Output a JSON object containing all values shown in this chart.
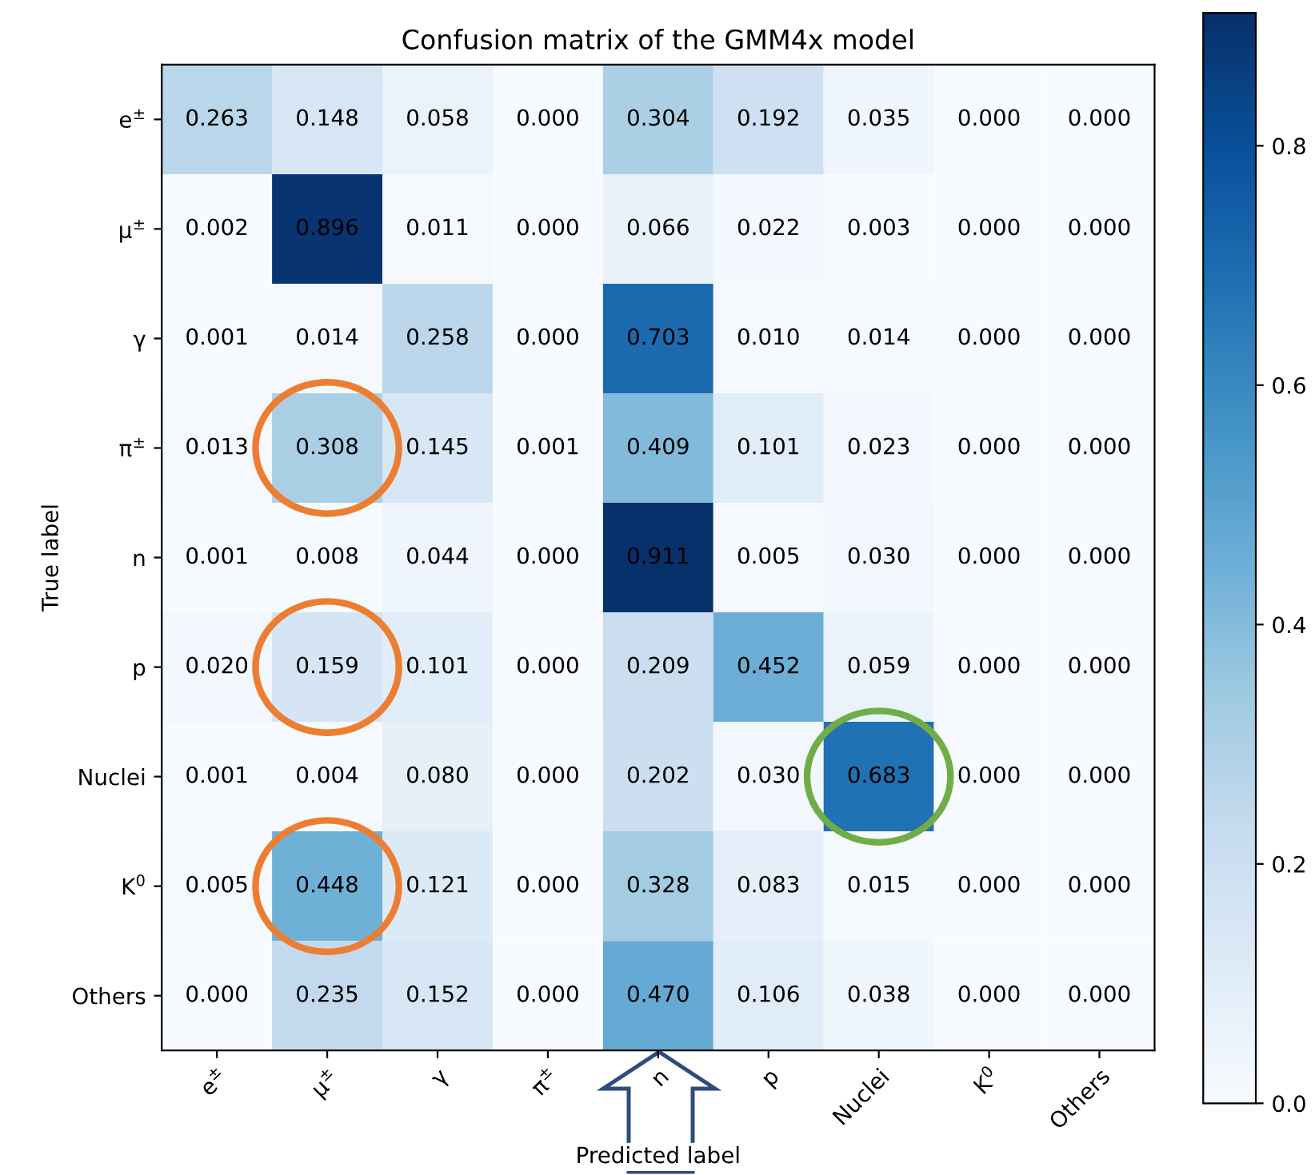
{
  "chart_data": {
    "type": "heatmap",
    "title": "Confusion matrix of the GMM4x model",
    "xlabel": "Predicted label",
    "ylabel": "True label",
    "categories": [
      "e$^{±}$",
      "μ$^{±}$",
      "γ",
      "π$^{±}$",
      "n",
      "p",
      "Nuclei",
      "K$^{0}$",
      "Others"
    ],
    "y_categories": [
      "e$^{±}$",
      "μ$^{±}$",
      "γ",
      "π$^{±}$",
      "n",
      "p",
      "Nuclei",
      "K$^{0}$",
      "Others"
    ],
    "cells": [
      [
        0.263,
        0.148,
        0.058,
        0.0,
        0.304,
        0.192,
        0.035,
        0.0,
        0.0
      ],
      [
        0.002,
        0.896,
        0.011,
        0.0,
        0.066,
        0.022,
        0.003,
        0.0,
        0.0
      ],
      [
        0.001,
        0.014,
        0.258,
        0.0,
        0.703,
        0.01,
        0.014,
        0.0,
        0.0
      ],
      [
        0.013,
        0.308,
        0.145,
        0.001,
        0.409,
        0.101,
        0.023,
        0.0,
        0.0
      ],
      [
        0.001,
        0.008,
        0.044,
        0.0,
        0.911,
        0.005,
        0.03,
        0.0,
        0.0
      ],
      [
        0.02,
        0.159,
        0.101,
        0.0,
        0.209,
        0.452,
        0.059,
        0.0,
        0.0
      ],
      [
        0.001,
        0.004,
        0.08,
        0.0,
        0.202,
        0.03,
        0.683,
        0.0,
        0.0
      ],
      [
        0.005,
        0.448,
        0.121,
        0.0,
        0.328,
        0.083,
        0.015,
        0.0,
        0.0
      ],
      [
        0.0,
        0.235,
        0.152,
        0.0,
        0.47,
        0.106,
        0.038,
        0.0,
        0.0
      ]
    ],
    "cell_labels": [
      [
        "0.263",
        "0.148",
        "0.058",
        "0.000",
        "0.304",
        "0.192",
        "0.035",
        "0.000",
        "0.000"
      ],
      [
        "0.002",
        "0.896",
        "0.011",
        "0.000",
        "0.066",
        "0.022",
        "0.003",
        "0.000",
        "0.000"
      ],
      [
        "0.001",
        "0.014",
        "0.258",
        "0.000",
        "0.703",
        "0.010",
        "0.014",
        "0.000",
        "0.000"
      ],
      [
        "0.013",
        "0.308",
        "0.145",
        "0.001",
        "0.409",
        "0.101",
        "0.023",
        "0.000",
        "0.000"
      ],
      [
        "0.001",
        "0.008",
        "0.044",
        "0.000",
        "0.911",
        "0.005",
        "0.030",
        "0.000",
        "0.000"
      ],
      [
        "0.020",
        "0.159",
        "0.101",
        "0.000",
        "0.209",
        "0.452",
        "0.059",
        "0.000",
        "0.000"
      ],
      [
        "0.001",
        "0.004",
        "0.080",
        "0.000",
        "0.202",
        "0.030",
        "0.683",
        "0.000",
        "0.000"
      ],
      [
        "0.005",
        "0.448",
        "0.121",
        "0.000",
        "0.328",
        "0.083",
        "0.015",
        "0.000",
        "0.000"
      ],
      [
        "0.000",
        "0.235",
        "0.152",
        "0.000",
        "0.470",
        "0.106",
        "0.038",
        "0.000",
        "0.000"
      ]
    ],
    "clim": [
      0,
      0.911
    ],
    "cticks": [
      {
        "value": 0,
        "label": "0.0"
      },
      {
        "value": 0.2,
        "label": "0.2"
      },
      {
        "value": 0.4,
        "label": "0.4"
      },
      {
        "value": 0.6,
        "label": "0.6"
      },
      {
        "value": 0.8,
        "label": "0.8"
      }
    ]
  }
}
